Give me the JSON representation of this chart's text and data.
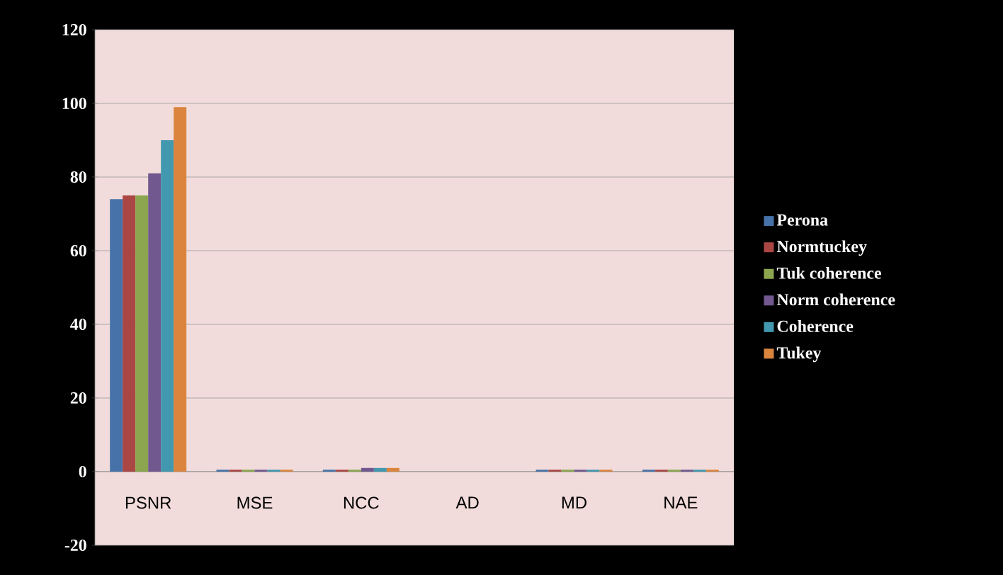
{
  "chart_data": {
    "type": "bar",
    "categories": [
      "PSNR",
      "MSE",
      "NCC",
      "AD",
      "MD",
      "NAE"
    ],
    "series": [
      {
        "name": "Perona",
        "color": "#4672a9",
        "values": [
          74,
          0.5,
          0.5,
          0,
          0.5,
          0.5
        ]
      },
      {
        "name": "Normtuckey",
        "color": "#aa4644",
        "values": [
          75,
          0.5,
          0.5,
          0,
          0.5,
          0.5
        ]
      },
      {
        "name": "Tuk coherence",
        "color": "#8ba64e",
        "values": [
          75,
          0.5,
          0.5,
          0,
          0.5,
          0.5
        ]
      },
      {
        "name": "Norm coherence",
        "color": "#71588f",
        "values": [
          81,
          0.5,
          1,
          0,
          0.5,
          0.5
        ]
      },
      {
        "name": "Coherence",
        "color": "#4198af",
        "values": [
          90,
          0.5,
          1,
          0,
          0.5,
          0.5
        ]
      },
      {
        "name": "Tukey",
        "color": "#db843d",
        "values": [
          99,
          0.5,
          1,
          0,
          0.5,
          0.5
        ]
      }
    ],
    "ylim": [
      -20,
      120
    ],
    "yticks": [
      -20,
      0,
      20,
      40,
      60,
      80,
      100,
      120
    ],
    "grid": "y",
    "legend": "right"
  }
}
